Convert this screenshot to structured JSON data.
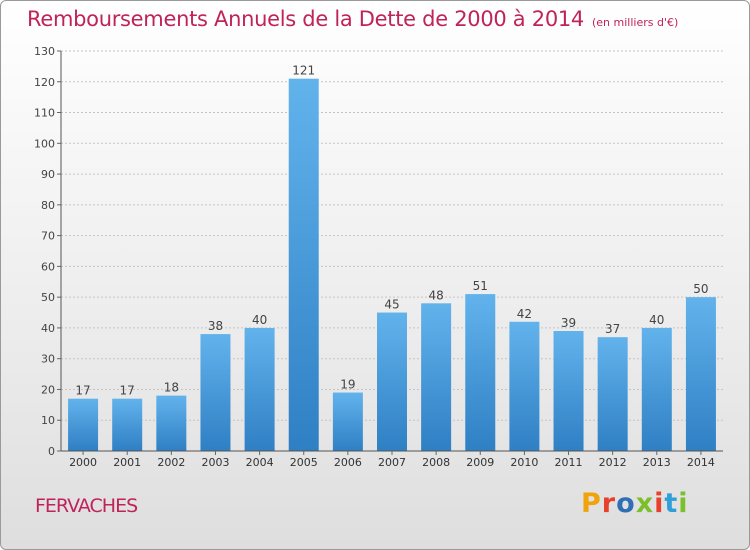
{
  "header": {
    "title": "Remboursements Annuels de la Dette de 2000 à 2014",
    "unit": "(en milliers d'€)"
  },
  "footer": {
    "town": "FERVACHES",
    "brand": "Proxiti",
    "brand_colors": [
      "#f0a30a",
      "#e8402a",
      "#2e6fb5",
      "#7bbf2a",
      "#e8402a",
      "#2e9fd8",
      "#7bbf2a"
    ]
  },
  "colors": {
    "accent": "#c0235a",
    "bar_top": "#62b3ec",
    "bar_bottom": "#2f7fc4"
  },
  "chart_data": {
    "type": "bar",
    "title": "Remboursements Annuels de la Dette de 2000 à 2014",
    "subtitle": "(en milliers d'€)",
    "categories": [
      "2000",
      "2001",
      "2002",
      "2003",
      "2004",
      "2005",
      "2006",
      "2007",
      "2008",
      "2009",
      "2010",
      "2011",
      "2012",
      "2013",
      "2014"
    ],
    "values": [
      17,
      17,
      18,
      38,
      40,
      121,
      19,
      45,
      48,
      51,
      42,
      39,
      37,
      40,
      50
    ],
    "ylim": [
      0,
      130
    ],
    "yticks": [
      0,
      10,
      20,
      30,
      40,
      50,
      60,
      70,
      80,
      90,
      100,
      110,
      120,
      130
    ],
    "grid": true,
    "data_labels": true,
    "xlabel": "",
    "ylabel": ""
  }
}
